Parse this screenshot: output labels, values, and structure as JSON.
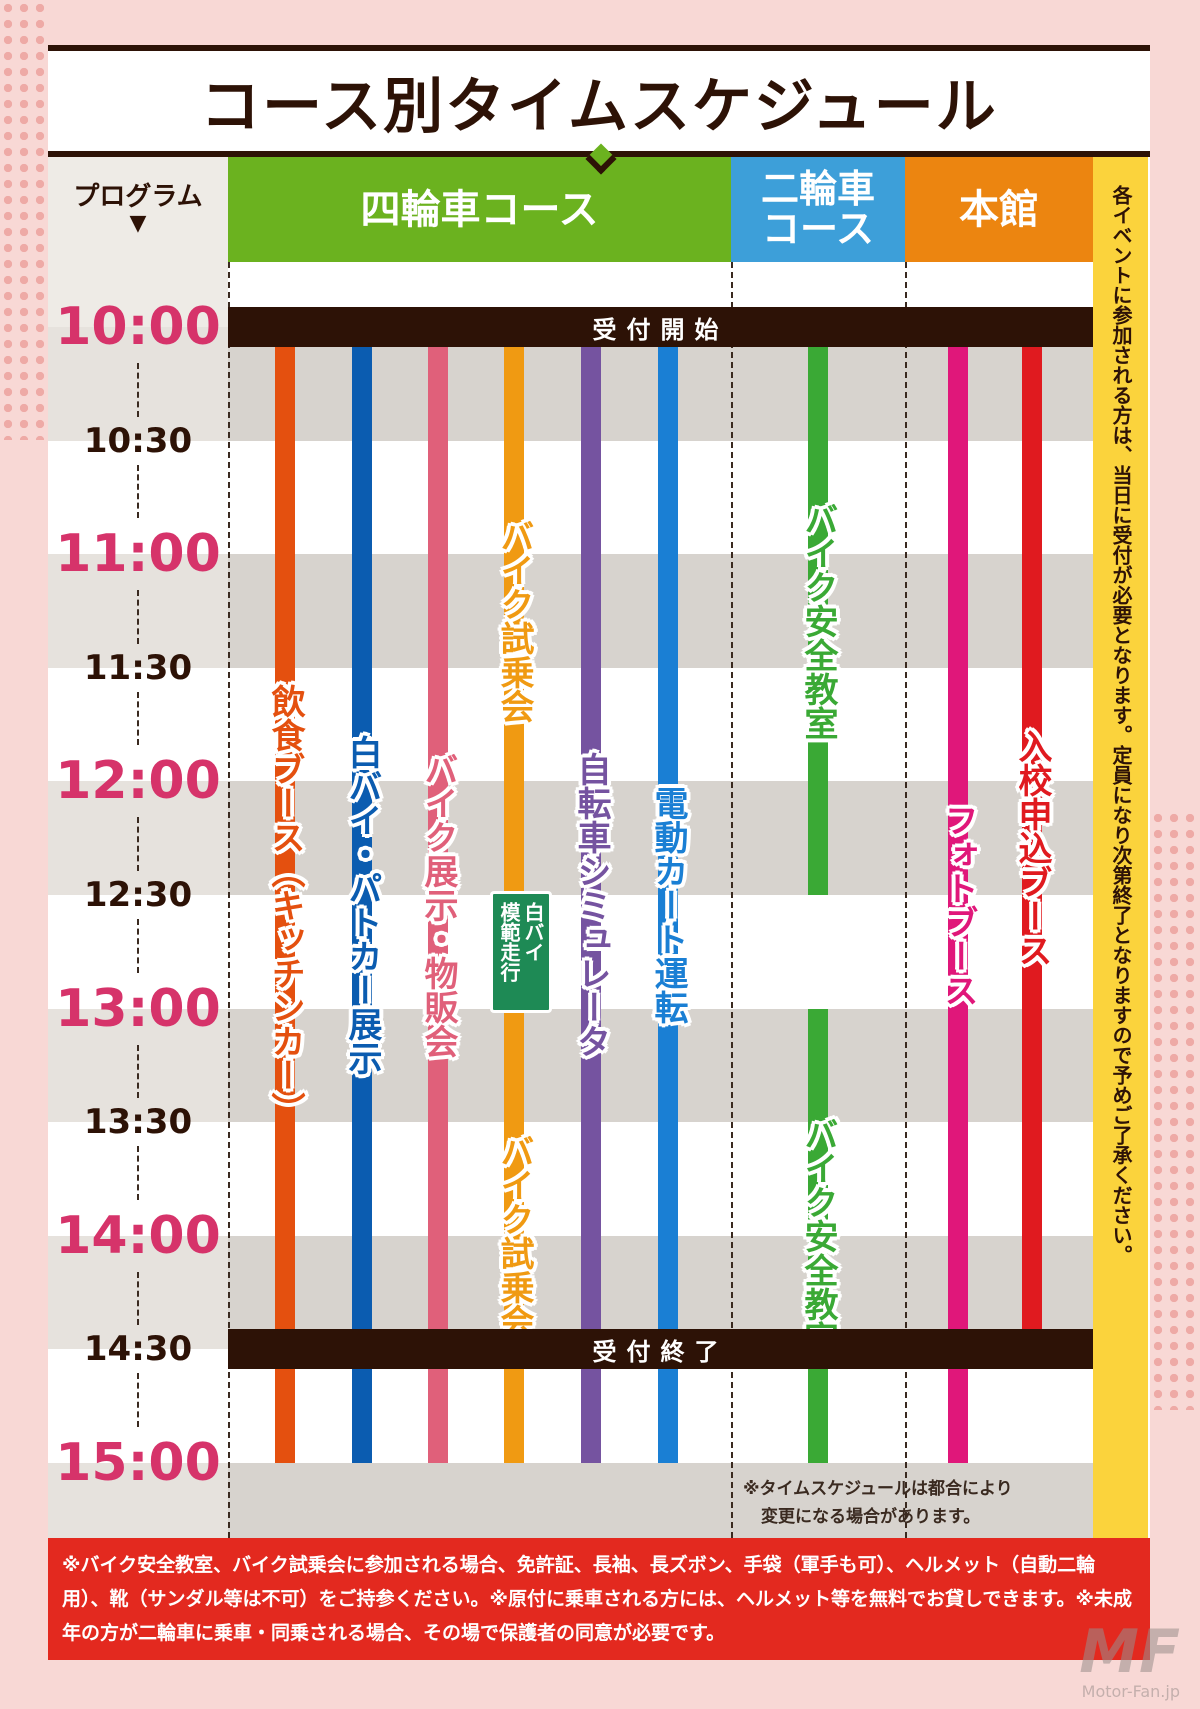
{
  "title": "コース別タイムスケジュール",
  "header": {
    "program": "プログラム",
    "program_arrow": "▼",
    "columns": [
      {
        "label": "四輪車コース",
        "color": "#6bb21f"
      },
      {
        "label": "二輪車\nコース",
        "color": "#3d9fd9"
      },
      {
        "label": "本館",
        "color": "#ec8510"
      }
    ]
  },
  "times": [
    {
      "label": "10:00",
      "major": true
    },
    {
      "label": "10:30",
      "major": false
    },
    {
      "label": "11:00",
      "major": true
    },
    {
      "label": "11:30",
      "major": false
    },
    {
      "label": "12:00",
      "major": true
    },
    {
      "label": "12:30",
      "major": false
    },
    {
      "label": "13:00",
      "major": true
    },
    {
      "label": "13:30",
      "major": false
    },
    {
      "label": "14:00",
      "major": true
    },
    {
      "label": "14:30",
      "major": false
    },
    {
      "label": "15:00",
      "major": true
    }
  ],
  "bars": [
    {
      "label": "受付開始",
      "time": "10:00"
    },
    {
      "label": "受付終了",
      "time": "14:30"
    }
  ],
  "events": [
    {
      "column": "四輪車コース",
      "color": "#e4500f",
      "segments": [
        {
          "label": "飲食ブース（キッチンカー）",
          "start": "10:00",
          "end": "15:00"
        }
      ]
    },
    {
      "column": "四輪車コース",
      "color": "#0b5cb0",
      "segments": [
        {
          "label": "白バイ・パトカー展示",
          "start": "10:00",
          "end": "15:00"
        }
      ]
    },
    {
      "column": "四輪車コース",
      "color": "#e0607a",
      "segments": [
        {
          "label": "バイク展示・物販会",
          "start": "10:00",
          "end": "15:00"
        }
      ]
    },
    {
      "column": "四輪車コース",
      "color": "#f09a12",
      "segments": [
        {
          "label": "バイク試乗会",
          "start": "10:00",
          "end": "12:30"
        },
        {
          "label": "白バイ\n模範走行",
          "start": "12:30",
          "end": "13:00",
          "color": "#1e8a55",
          "block": true
        },
        {
          "label": "バイク試乗会",
          "start": "13:00",
          "end": "15:00"
        }
      ]
    },
    {
      "column": "四輪車コース",
      "color": "#7553a0",
      "segments": [
        {
          "label": "自転車シミュレータ",
          "start": "10:00",
          "end": "15:00"
        }
      ]
    },
    {
      "column": "四輪車コース",
      "color": "#1a7fd4",
      "segments": [
        {
          "label": "電動カート運転",
          "start": "10:00",
          "end": "15:00"
        }
      ]
    },
    {
      "column": "二輪車コース",
      "color": "#3aa935",
      "segments": [
        {
          "label": "バイク安全教室",
          "start": "10:00",
          "end": "12:30"
        },
        {
          "label": "バイク安全教室",
          "start": "13:00",
          "end": "15:00"
        }
      ]
    },
    {
      "column": "本館",
      "color": "#e0177a",
      "segments": [
        {
          "label": "フォトブース",
          "start": "10:00",
          "end": "15:00"
        }
      ]
    },
    {
      "column": "本館",
      "color": "#e01a1f",
      "segments": [
        {
          "label": "入校申込ブース",
          "start": "10:00",
          "end": "14:30"
        }
      ]
    }
  ],
  "side_note": "各イベントに参加される方は、当日に受付が必要となります。定員になり次第終了となりますので予めご了承ください。",
  "schedule_note": [
    "※タイムスケジュールは都合により",
    "変更になる場合があります。"
  ],
  "footer": "※バイク安全教室、バイク試乗会に参加される場合、免許証、長袖、長ズボン、手袋（軍手も可）、ヘルメット（自動二輪用）、靴（サンダル等は不可）をご持参ください。※原付に乗車される方には、ヘルメット等を無料でお貸しできます。※未成年の方が二輪車に乗車・同乗される場合、その場で保護者の同意が必要です。",
  "watermark": {
    "logo": "MF",
    "site": "Motor-Fan.jp"
  },
  "colors": {
    "dark": "#2d1206",
    "time_major": "#d6336a",
    "band_gray": "#d7d3ce",
    "time_col": "#eeebe6",
    "side": "#fbd33c",
    "footer": "#e3291f"
  }
}
